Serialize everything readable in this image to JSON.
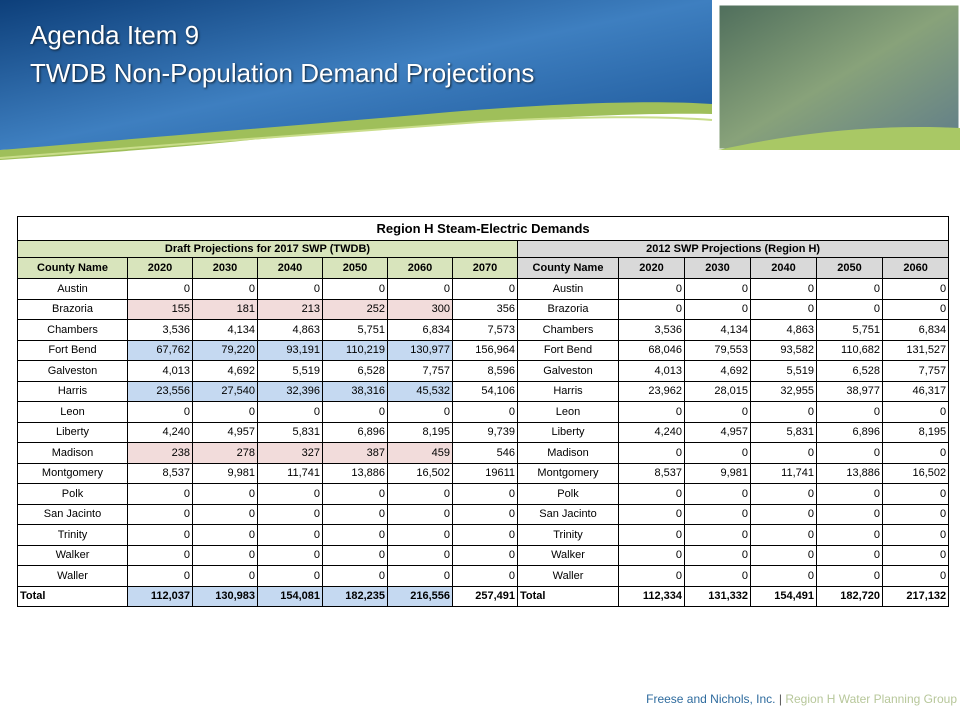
{
  "header": {
    "title_line1": "Agenda Item 9",
    "title_line2": "TWDB Non-Population Demand Projections"
  },
  "table": {
    "title": "Region H Steam-Electric Demands",
    "left_group": "Draft Projections for 2017 SWP (TWDB)",
    "right_group": "2012 SWP Projections (Region H)",
    "left_columns": [
      "County Name",
      "2020",
      "2030",
      "2040",
      "2050",
      "2060",
      "2070"
    ],
    "right_columns": [
      "County Name",
      "2020",
      "2030",
      "2040",
      "2050",
      "2060"
    ],
    "rows": [
      [
        "Austin",
        "0",
        "0",
        "0",
        "0",
        "0",
        "0",
        "Austin",
        "0",
        "0",
        "0",
        "0",
        "0"
      ],
      [
        "Brazoria",
        "155",
        "181",
        "213",
        "252",
        "300",
        "356",
        "Brazoria",
        "0",
        "0",
        "0",
        "0",
        "0"
      ],
      [
        "Chambers",
        "3,536",
        "4,134",
        "4,863",
        "5,751",
        "6,834",
        "7,573",
        "Chambers",
        "3,536",
        "4,134",
        "4,863",
        "5,751",
        "6,834"
      ],
      [
        "Fort Bend",
        "67,762",
        "79,220",
        "93,191",
        "110,219",
        "130,977",
        "156,964",
        "Fort Bend",
        "68,046",
        "79,553",
        "93,582",
        "110,682",
        "131,527"
      ],
      [
        "Galveston",
        "4,013",
        "4,692",
        "5,519",
        "6,528",
        "7,757",
        "8,596",
        "Galveston",
        "4,013",
        "4,692",
        "5,519",
        "6,528",
        "7,757"
      ],
      [
        "Harris",
        "23,556",
        "27,540",
        "32,396",
        "38,316",
        "45,532",
        "54,106",
        "Harris",
        "23,962",
        "28,015",
        "32,955",
        "38,977",
        "46,317"
      ],
      [
        "Leon",
        "0",
        "0",
        "0",
        "0",
        "0",
        "0",
        "Leon",
        "0",
        "0",
        "0",
        "0",
        "0"
      ],
      [
        "Liberty",
        "4,240",
        "4,957",
        "5,831",
        "6,896",
        "8,195",
        "9,739",
        "Liberty",
        "4,240",
        "4,957",
        "5,831",
        "6,896",
        "8,195"
      ],
      [
        "Madison",
        "238",
        "278",
        "327",
        "387",
        "459",
        "546",
        "Madison",
        "0",
        "0",
        "0",
        "0",
        "0"
      ],
      [
        "Montgomery",
        "8,537",
        "9,981",
        "11,741",
        "13,886",
        "16,502",
        "19611",
        "Montgomery",
        "8,537",
        "9,981",
        "11,741",
        "13,886",
        "16,502"
      ],
      [
        "Polk",
        "0",
        "0",
        "0",
        "0",
        "0",
        "0",
        "Polk",
        "0",
        "0",
        "0",
        "0",
        "0"
      ],
      [
        "San Jacinto",
        "0",
        "0",
        "0",
        "0",
        "0",
        "0",
        "San Jacinto",
        "0",
        "0",
        "0",
        "0",
        "0"
      ],
      [
        "Trinity",
        "0",
        "0",
        "0",
        "0",
        "0",
        "0",
        "Trinity",
        "0",
        "0",
        "0",
        "0",
        "0"
      ],
      [
        "Walker",
        "0",
        "0",
        "0",
        "0",
        "0",
        "0",
        "Walker",
        "0",
        "0",
        "0",
        "0",
        "0"
      ],
      [
        "Waller",
        "0",
        "0",
        "0",
        "0",
        "0",
        "0",
        "Waller",
        "0",
        "0",
        "0",
        "0",
        "0"
      ],
      [
        "Total",
        "112,037",
        "130,983",
        "154,081",
        "182,235",
        "216,556",
        "257,491",
        "Total",
        "112,334",
        "131,332",
        "154,491",
        "182,720",
        "217,132"
      ]
    ]
  },
  "footer": {
    "company": "Freese and Nichols, Inc.",
    "separator": "|",
    "group": "Region H Water Planning Group"
  }
}
